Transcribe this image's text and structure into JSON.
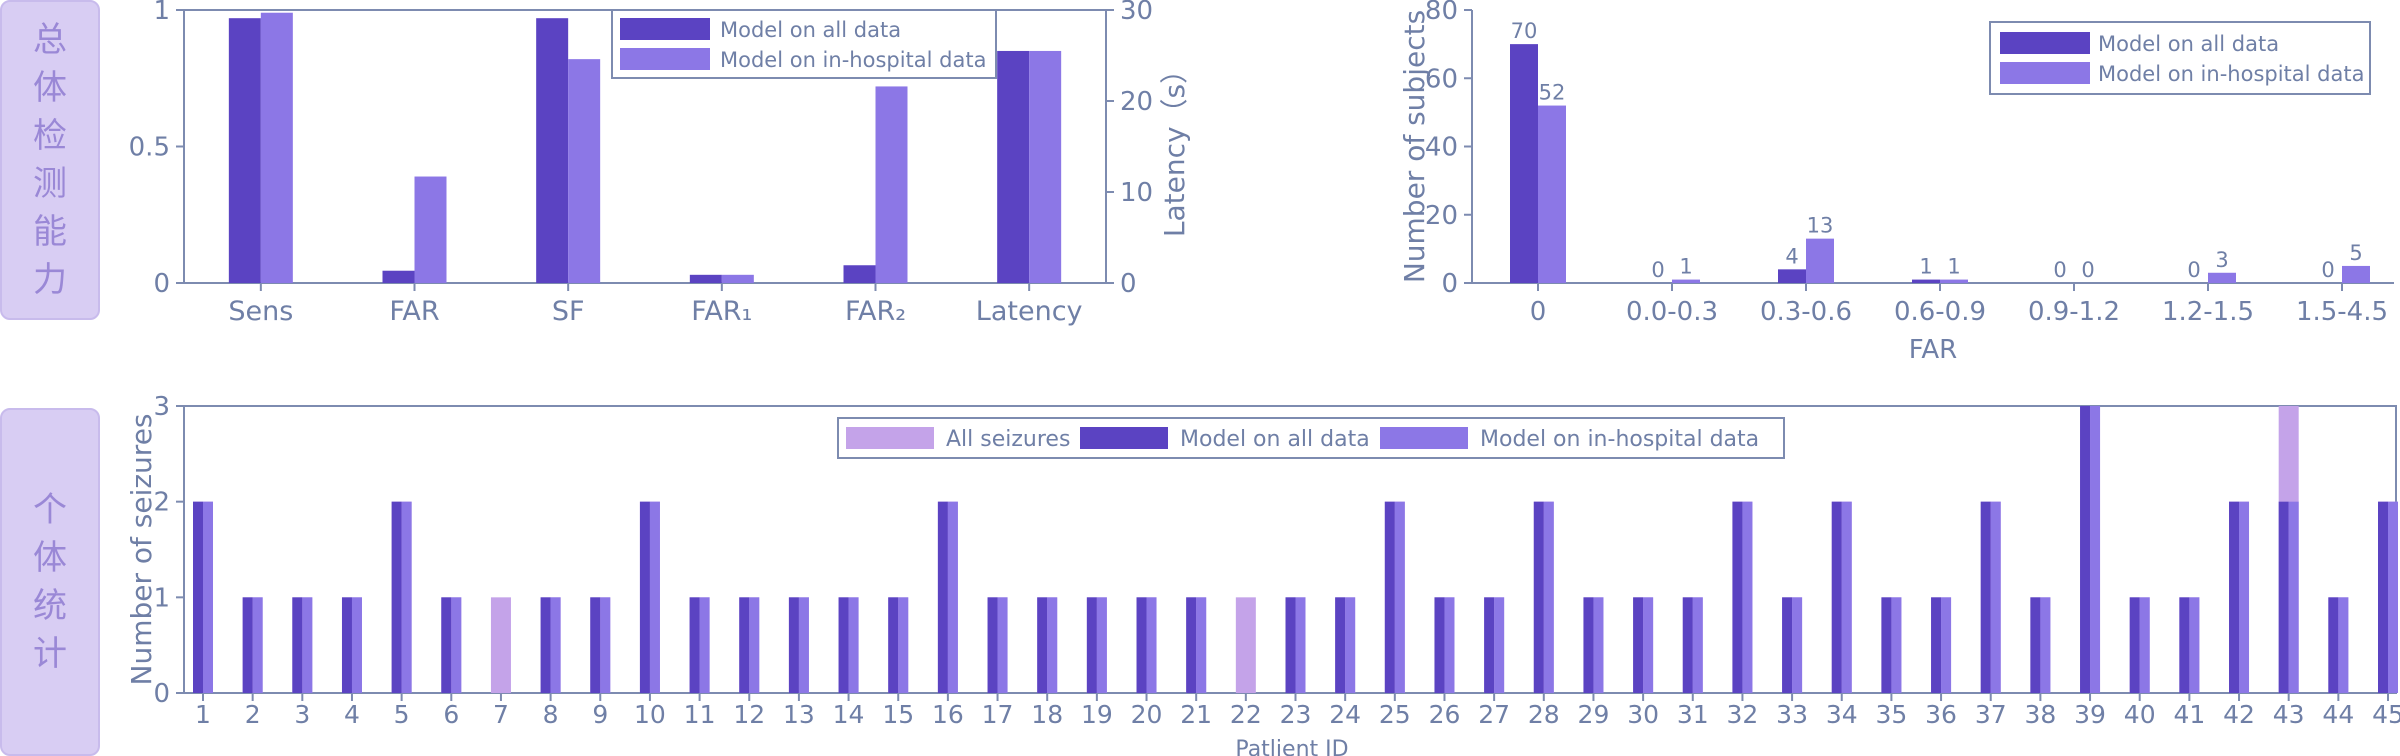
{
  "side_labels": {
    "top": [
      "总",
      "体",
      "检",
      "测",
      "能",
      "力"
    ],
    "bottom": [
      "个",
      "体",
      "统",
      "计"
    ]
  },
  "colors": {
    "all_data": "#5b43c2",
    "in_hospital": "#8c77e6",
    "all_seizures": "#c4a3e9",
    "axis": "#7d8bb0",
    "text": "#6f7fa6"
  },
  "chart_data": [
    {
      "type": "bar",
      "categories": [
        "Sens",
        "FAR",
        "SF",
        "FAR₁",
        "FAR₂",
        "Latency"
      ],
      "series": [
        {
          "name": "Model on all data",
          "values": [
            0.97,
            0.045,
            0.97,
            0.03,
            0.065,
            25.5
          ]
        },
        {
          "name": "Model on in-hospital data",
          "values": [
            0.99,
            0.39,
            0.82,
            0.03,
            0.72,
            25.5
          ]
        }
      ],
      "secondary_axis_categories": [
        "Latency"
      ],
      "ylim": [
        0,
        1
      ],
      "yticks": [
        "0",
        "0.5",
        "1"
      ],
      "y2lim": [
        0,
        30
      ],
      "y2ticks": [
        "0",
        "10",
        "20",
        "30"
      ],
      "y2label": "Latency（s）",
      "legend": "top-center"
    },
    {
      "type": "bar",
      "categories": [
        "0",
        "0.0-0.3",
        "0.3-0.6",
        "0.6-0.9",
        "0.9-1.2",
        "1.2-1.5",
        "1.5-4.5"
      ],
      "series": [
        {
          "name": "Model on all data",
          "values": [
            70,
            0,
            4,
            1,
            0,
            0,
            0
          ]
        },
        {
          "name": "Model on in-hospital data",
          "values": [
            52,
            1,
            13,
            1,
            0,
            3,
            5
          ]
        }
      ],
      "xlabel": "FAR",
      "ylabel": "Number of subjects",
      "ylim": [
        0,
        80
      ],
      "yticks": [
        "0",
        "20",
        "40",
        "60",
        "80"
      ],
      "legend": "top-right"
    },
    {
      "type": "bar",
      "categories": [
        "1",
        "2",
        "3",
        "4",
        "5",
        "6",
        "7",
        "8",
        "9",
        "10",
        "11",
        "12",
        "13",
        "14",
        "15",
        "16",
        "17",
        "18",
        "19",
        "20",
        "21",
        "22",
        "23",
        "24",
        "25",
        "26",
        "27",
        "28",
        "29",
        "30",
        "31",
        "32",
        "33",
        "34",
        "35",
        "36",
        "37",
        "38",
        "39",
        "40",
        "41",
        "42",
        "43",
        "44",
        "45"
      ],
      "series": [
        {
          "name": "All seizures",
          "values": [
            2,
            1,
            1,
            1,
            2,
            1,
            1,
            1,
            1,
            2,
            1,
            1,
            1,
            1,
            1,
            2,
            1,
            1,
            1,
            1,
            1,
            1,
            1,
            1,
            2,
            1,
            1,
            2,
            1,
            1,
            1,
            2,
            1,
            2,
            1,
            1,
            2,
            1,
            3,
            1,
            1,
            2,
            3,
            1,
            2
          ]
        },
        {
          "name": "Model on all data",
          "values": [
            2,
            1,
            1,
            1,
            2,
            1,
            0,
            1,
            1,
            2,
            1,
            1,
            1,
            1,
            1,
            2,
            1,
            1,
            1,
            1,
            1,
            0,
            1,
            1,
            2,
            1,
            1,
            2,
            1,
            1,
            1,
            2,
            1,
            2,
            1,
            1,
            2,
            1,
            3,
            1,
            1,
            2,
            2,
            1,
            2
          ]
        },
        {
          "name": "Model on in-hospital data",
          "values": [
            2,
            1,
            1,
            1,
            2,
            1,
            0,
            1,
            1,
            2,
            1,
            1,
            1,
            1,
            1,
            2,
            1,
            1,
            1,
            1,
            1,
            0,
            1,
            1,
            2,
            1,
            1,
            2,
            1,
            1,
            1,
            2,
            1,
            2,
            1,
            1,
            2,
            1,
            3,
            1,
            1,
            2,
            2,
            1,
            2
          ]
        }
      ],
      "xlabel": "Patlient ID",
      "ylabel": "Number of seizures",
      "ylim": [
        0,
        3
      ],
      "yticks": [
        "0",
        "1",
        "2",
        "3"
      ],
      "legend": "top-center"
    }
  ]
}
